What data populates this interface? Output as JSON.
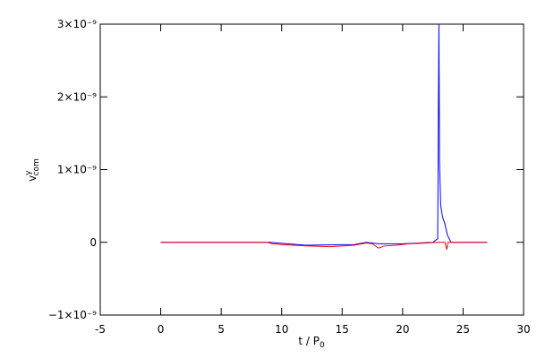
{
  "chart_data": {
    "type": "line",
    "xlabel": "t / P",
    "xlabel_sub": "0",
    "ylabel": "v",
    "ylabel_sup": "y",
    "ylabel_sub": "com",
    "xlim": [
      -5,
      30
    ],
    "xticks": [
      -5,
      0,
      5,
      10,
      15,
      20,
      25,
      30
    ],
    "ylim": [
      -1e-09,
      3e-09
    ],
    "yticks": [
      {
        "value": -1e-09,
        "label": "−1×10⁻⁹"
      },
      0,
      {
        "value": 1e-09,
        "label": "1×10⁻⁹"
      },
      {
        "value": 2e-09,
        "label": "2×10⁻⁹"
      },
      {
        "value": 3e-09,
        "label": "3×10⁻⁹"
      }
    ],
    "series": [
      {
        "color": "#0000ff",
        "x": [
          0,
          9,
          12,
          16,
          17,
          18,
          20,
          22.5,
          22.9,
          23.0,
          23.05,
          23.15,
          23.3,
          23.5,
          23.7,
          24.0,
          27
        ],
        "values": [
          0,
          0,
          -4e-11,
          -3e-11,
          0,
          -2e-11,
          -2e-11,
          0,
          5e-11,
          3e-09,
          1.1e-09,
          5e-10,
          3.5e-10,
          2.5e-10,
          1e-10,
          0,
          0
        ]
      },
      {
        "color": "#ff0000",
        "x": [
          0,
          8.8,
          9.2,
          10,
          12,
          14,
          16,
          17,
          17.5,
          18,
          18.5,
          19.5,
          20.5,
          22,
          22.9,
          23.5,
          23.65,
          23.75,
          27
        ],
        "values": [
          0,
          0,
          -2e-11,
          -3e-11,
          -5e-11,
          -6e-11,
          -4e-11,
          -1e-11,
          -2e-11,
          -8e-11,
          -5e-11,
          -4e-11,
          -2e-11,
          -1e-11,
          0,
          0,
          -1e-10,
          0,
          0
        ]
      }
    ]
  }
}
